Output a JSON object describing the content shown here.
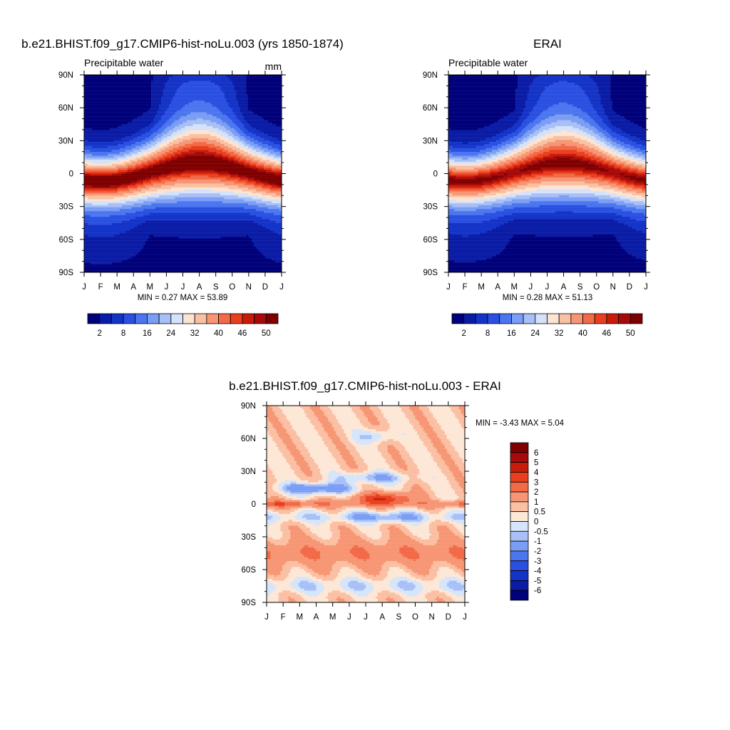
{
  "colors": {
    "abs_scale": [
      "#00007a",
      "#0a1ca6",
      "#1434c8",
      "#2a50e2",
      "#4b76f0",
      "#7b9ef4",
      "#a8c0f7",
      "#d4e2fa",
      "#fde4d2",
      "#f9c0a3",
      "#f69674",
      "#f26a47",
      "#e8401f",
      "#c81c0a",
      "#a60a0a",
      "#7e0000"
    ],
    "diff_scale": [
      "#7e0000",
      "#a60a0a",
      "#c81c0a",
      "#e8401f",
      "#f26a47",
      "#f69674",
      "#fbbfa3",
      "#fde7d6",
      "#d5e5fb",
      "#a8c0f7",
      "#7b9ef4",
      "#4b76f0",
      "#2a50e2",
      "#1434c8",
      "#0a1ca6",
      "#00007a"
    ]
  },
  "chart_data": [
    {
      "type": "heatmap",
      "title": "b.e21.BHIST.f09_g17.CMIP6-hist-noLu.003 (yrs 1850-1874)",
      "subtitle": "Precipitable water",
      "units": "mm",
      "x": [
        "J",
        "F",
        "M",
        "A",
        "M",
        "J",
        "J",
        "A",
        "S",
        "O",
        "N",
        "D",
        "J"
      ],
      "y": [
        "90N",
        "60N",
        "30N",
        "0",
        "30S",
        "60S",
        "90S"
      ],
      "stats": "MIN =   0.27 MAX =  53.89",
      "colorbar_ticks": [
        "2",
        "8",
        "16",
        "24",
        "32",
        "40",
        "46",
        "50"
      ],
      "max_value": 53.89
    },
    {
      "type": "heatmap",
      "title": "ERAI",
      "subtitle": "Precipitable water",
      "units": "",
      "x": [
        "J",
        "F",
        "M",
        "A",
        "M",
        "J",
        "J",
        "A",
        "S",
        "O",
        "N",
        "D",
        "J"
      ],
      "y": [
        "90N",
        "60N",
        "30N",
        "0",
        "30S",
        "60S",
        "90S"
      ],
      "stats": "MIN =   0.28 MAX =  51.13",
      "colorbar_ticks": [
        "2",
        "8",
        "16",
        "24",
        "32",
        "40",
        "46",
        "50"
      ],
      "max_value": 51.13
    },
    {
      "type": "heatmap",
      "title": "b.e21.BHIST.f09_g17.CMIP6-hist-noLu.003 - ERAI",
      "x": [
        "J",
        "F",
        "M",
        "A",
        "M",
        "J",
        "J",
        "A",
        "S",
        "O",
        "N",
        "D",
        "J"
      ],
      "y": [
        "90N",
        "60N",
        "30N",
        "0",
        "30S",
        "60S",
        "90S"
      ],
      "stats": "MIN =  -3.43 MAX =   5.04",
      "colorbar_ticks": [
        "6",
        "5",
        "4",
        "3",
        "2",
        "1",
        "0.5",
        "0",
        "-0.5",
        "-1",
        "-2",
        "-3",
        "-4",
        "-5",
        "-6"
      ]
    }
  ]
}
